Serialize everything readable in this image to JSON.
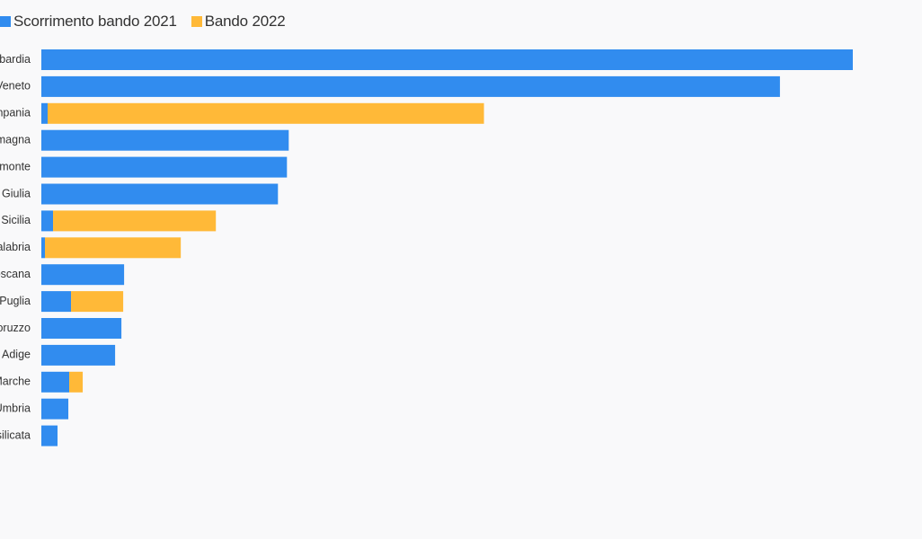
{
  "colors": {
    "series_2021": "#318cef",
    "series_2022": "#ffb938",
    "background": "#f9f9fa",
    "text": "#333333"
  },
  "chart_data": {
    "type": "bar",
    "orientation": "horizontal",
    "stacked": true,
    "legend_position": "top-left",
    "grid": false,
    "categories": [
      "bardia",
      "Veneto",
      "npania",
      "magna",
      "monte",
      "Giulia",
      "Sicilia",
      "alabria",
      "oscana",
      "Puglia",
      "oruzzo",
      "Adige",
      "Marche",
      "Umbria",
      "silicata"
    ],
    "series": [
      {
        "name": "Scorrimento bando 2021",
        "color": "#318cef",
        "values": [
          902,
          821,
          7,
          275,
          273,
          263,
          13,
          4,
          92,
          33,
          89,
          82,
          31,
          30,
          18
        ]
      },
      {
        "name": "Bando 2022",
        "color": "#ffb938",
        "values": [
          0,
          0,
          485,
          0,
          0,
          0,
          181,
          151,
          0,
          58,
          0,
          0,
          15,
          0,
          0
        ]
      }
    ],
    "xlim": [
      0,
      902
    ]
  }
}
